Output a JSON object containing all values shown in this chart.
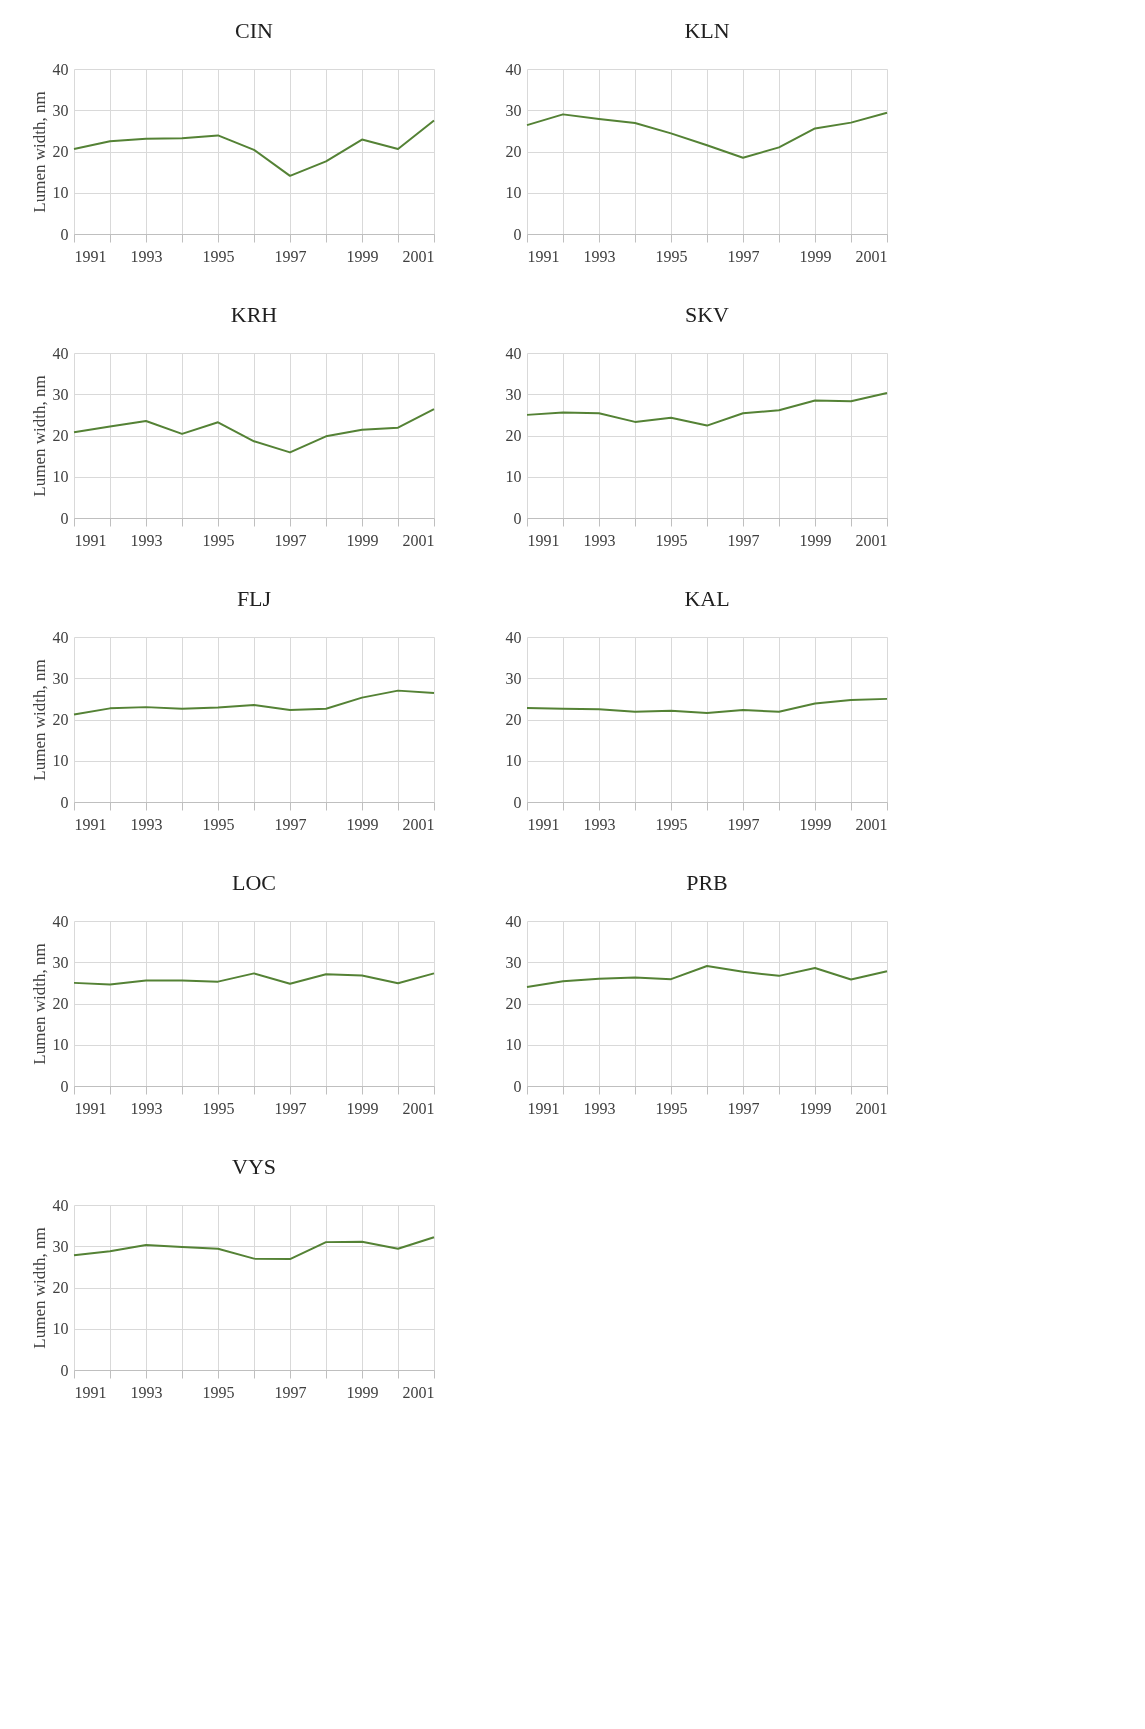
{
  "chart_data": [
    {
      "type": "line",
      "title": "CIN",
      "ylabel": "Lumen width, nm",
      "x": [
        1991,
        1992,
        1993,
        1994,
        1995,
        1996,
        1997,
        1998,
        1999,
        2000,
        2001
      ],
      "series": [
        {
          "color": "#548235",
          "values": [
            20.6,
            22.5,
            23.1,
            23.2,
            23.9,
            20.4,
            14.1,
            17.6,
            22.9,
            20.6,
            27.5
          ]
        }
      ],
      "xlim": [
        1991,
        2001
      ],
      "xticks": [
        1991,
        {
          "value": 1992,
          "label": null
        },
        1993,
        {
          "value": 1994,
          "label": null
        },
        1995,
        {
          "value": 1996,
          "label": null
        },
        1997,
        {
          "value": 1998,
          "label": null
        },
        1999,
        {
          "value": 2000,
          "label": null
        },
        2001
      ],
      "ylim": [
        0,
        40
      ],
      "yticks": [
        0,
        10,
        20,
        30,
        40
      ],
      "grid": true,
      "legend": false,
      "marker": "none",
      "line_style": "solid"
    },
    {
      "type": "line",
      "title": "KLN",
      "x": [
        1991,
        1992,
        1993,
        1994,
        1995,
        1996,
        1997,
        1998,
        1999,
        2000,
        2001
      ],
      "series": [
        {
          "color": "#548235",
          "values": [
            26.4,
            29.0,
            27.9,
            26.9,
            24.4,
            21.5,
            18.5,
            21.0,
            25.6,
            27.0,
            29.4
          ]
        }
      ],
      "xlim": [
        1991,
        2001
      ],
      "xticks": [
        1991,
        {
          "value": 1992,
          "label": null
        },
        1993,
        {
          "value": 1994,
          "label": null
        },
        1995,
        {
          "value": 1996,
          "label": null
        },
        1997,
        {
          "value": 1998,
          "label": null
        },
        1999,
        {
          "value": 2000,
          "label": null
        },
        2001
      ],
      "ylim": [
        0,
        40
      ],
      "yticks": [
        0,
        10,
        20,
        30,
        40
      ],
      "grid": true,
      "legend": false,
      "marker": "none",
      "line_style": "solid"
    },
    {
      "type": "line",
      "title": "KRH",
      "ylabel": "Lumen width, nm",
      "x": [
        1991,
        1992,
        1993,
        1994,
        1995,
        1996,
        1997,
        1998,
        1999,
        2000,
        2001
      ],
      "series": [
        {
          "color": "#548235",
          "values": [
            20.8,
            22.2,
            23.5,
            20.4,
            23.2,
            18.6,
            15.9,
            19.8,
            21.4,
            21.9,
            26.4
          ]
        }
      ],
      "xlim": [
        1991,
        2001
      ],
      "xticks": [
        1991,
        {
          "value": 1992,
          "label": null
        },
        1993,
        {
          "value": 1994,
          "label": null
        },
        1995,
        {
          "value": 1996,
          "label": null
        },
        1997,
        {
          "value": 1998,
          "label": null
        },
        1999,
        {
          "value": 2000,
          "label": null
        },
        2001
      ],
      "ylim": [
        0,
        40
      ],
      "yticks": [
        0,
        10,
        20,
        30,
        40
      ],
      "grid": true,
      "legend": false,
      "marker": "none",
      "line_style": "solid"
    },
    {
      "type": "line",
      "title": "SKV",
      "x": [
        1991,
        1992,
        1993,
        1994,
        1995,
        1996,
        1997,
        1998,
        1999,
        2000,
        2001
      ],
      "series": [
        {
          "color": "#548235",
          "values": [
            25.0,
            25.6,
            25.4,
            23.3,
            24.3,
            22.4,
            25.4,
            26.1,
            28.5,
            28.3,
            30.3
          ]
        }
      ],
      "xlim": [
        1991,
        2001
      ],
      "xticks": [
        1991,
        {
          "value": 1992,
          "label": null
        },
        1993,
        {
          "value": 1994,
          "label": null
        },
        1995,
        {
          "value": 1996,
          "label": null
        },
        1997,
        {
          "value": 1998,
          "label": null
        },
        1999,
        {
          "value": 2000,
          "label": null
        },
        2001
      ],
      "ylim": [
        0,
        40
      ],
      "yticks": [
        0,
        10,
        20,
        30,
        40
      ],
      "grid": true,
      "legend": false,
      "marker": "none",
      "line_style": "solid"
    },
    {
      "type": "line",
      "title": "FLJ",
      "ylabel": "Lumen width, nm",
      "x": [
        1991,
        1992,
        1993,
        1994,
        1995,
        1996,
        1997,
        1998,
        1999,
        2000,
        2001
      ],
      "series": [
        {
          "color": "#548235",
          "values": [
            21.2,
            22.7,
            23.0,
            22.6,
            22.9,
            23.5,
            22.3,
            22.6,
            25.3,
            27.0,
            26.4
          ]
        }
      ],
      "xlim": [
        1991,
        2001
      ],
      "xticks": [
        1991,
        {
          "value": 1992,
          "label": null
        },
        1993,
        {
          "value": 1994,
          "label": null
        },
        1995,
        {
          "value": 1996,
          "label": null
        },
        1997,
        {
          "value": 1998,
          "label": null
        },
        1999,
        {
          "value": 2000,
          "label": null
        },
        2001
      ],
      "ylim": [
        0,
        40
      ],
      "yticks": [
        0,
        10,
        20,
        30,
        40
      ],
      "grid": true,
      "legend": false,
      "marker": "none",
      "line_style": "solid"
    },
    {
      "type": "line",
      "title": "KAL",
      "x": [
        1991,
        1992,
        1993,
        1994,
        1995,
        1996,
        1997,
        1998,
        1999,
        2000,
        2001
      ],
      "series": [
        {
          "color": "#548235",
          "values": [
            22.8,
            22.6,
            22.5,
            21.9,
            22.1,
            21.6,
            22.3,
            21.9,
            23.9,
            24.7,
            25.0
          ]
        }
      ],
      "xlim": [
        1991,
        2001
      ],
      "xticks": [
        1991,
        {
          "value": 1992,
          "label": null
        },
        1993,
        {
          "value": 1994,
          "label": null
        },
        1995,
        {
          "value": 1996,
          "label": null
        },
        1997,
        {
          "value": 1998,
          "label": null
        },
        1999,
        {
          "value": 2000,
          "label": null
        },
        2001
      ],
      "ylim": [
        0,
        40
      ],
      "yticks": [
        0,
        10,
        20,
        30,
        40
      ],
      "grid": true,
      "legend": false,
      "marker": "none",
      "line_style": "solid"
    },
    {
      "type": "line",
      "title": "LOC",
      "ylabel": "Lumen width, nm",
      "x": [
        1991,
        1992,
        1993,
        1994,
        1995,
        1996,
        1997,
        1998,
        1999,
        2000,
        2001
      ],
      "series": [
        {
          "color": "#548235",
          "values": [
            25.0,
            24.6,
            25.6,
            25.6,
            25.3,
            27.3,
            24.8,
            27.1,
            26.8,
            24.9,
            27.3
          ]
        }
      ],
      "xlim": [
        1991,
        2001
      ],
      "xticks": [
        1991,
        {
          "value": 1992,
          "label": null
        },
        1993,
        {
          "value": 1994,
          "label": null
        },
        1995,
        {
          "value": 1996,
          "label": null
        },
        1997,
        {
          "value": 1998,
          "label": null
        },
        1999,
        {
          "value": 2000,
          "label": null
        },
        2001
      ],
      "ylim": [
        0,
        40
      ],
      "yticks": [
        0,
        10,
        20,
        30,
        40
      ],
      "grid": true,
      "legend": false,
      "marker": "none",
      "line_style": "solid"
    },
    {
      "type": "line",
      "title": "PRB",
      "x": [
        1991,
        1992,
        1993,
        1994,
        1995,
        1996,
        1997,
        1998,
        1999,
        2000,
        2001
      ],
      "series": [
        {
          "color": "#548235",
          "values": [
            24.0,
            25.4,
            26.0,
            26.3,
            25.9,
            29.1,
            27.7,
            26.7,
            28.6,
            25.8,
            27.8
          ]
        }
      ],
      "xlim": [
        1991,
        2001
      ],
      "xticks": [
        1991,
        {
          "value": 1992,
          "label": null
        },
        1993,
        {
          "value": 1994,
          "label": null
        },
        1995,
        {
          "value": 1996,
          "label": null
        },
        1997,
        {
          "value": 1998,
          "label": null
        },
        1999,
        {
          "value": 2000,
          "label": null
        },
        2001
      ],
      "ylim": [
        0,
        40
      ],
      "yticks": [
        0,
        10,
        20,
        30,
        40
      ],
      "grid": true,
      "legend": false,
      "marker": "none",
      "line_style": "solid"
    },
    {
      "type": "line",
      "title": "VYS",
      "ylabel": "Lumen width, nm",
      "x": [
        1991,
        1992,
        1993,
        1994,
        1995,
        1996,
        1997,
        1998,
        1999,
        2000,
        2001
      ],
      "series": [
        {
          "color": "#548235",
          "values": [
            27.8,
            28.8,
            30.3,
            29.8,
            29.4,
            27.0,
            26.9,
            31.0,
            31.1,
            29.4,
            32.2
          ]
        }
      ],
      "xlim": [
        1991,
        2001
      ],
      "xticks": [
        1991,
        {
          "value": 1992,
          "label": null
        },
        1993,
        {
          "value": 1994,
          "label": null
        },
        1995,
        {
          "value": 1996,
          "label": null
        },
        1997,
        {
          "value": 1998,
          "label": null
        },
        1999,
        {
          "value": 2000,
          "label": null
        },
        2001
      ],
      "ylim": [
        0,
        40
      ],
      "yticks": [
        0,
        10,
        20,
        30,
        40
      ],
      "grid": true,
      "legend": false,
      "marker": "none",
      "line_style": "solid"
    }
  ]
}
